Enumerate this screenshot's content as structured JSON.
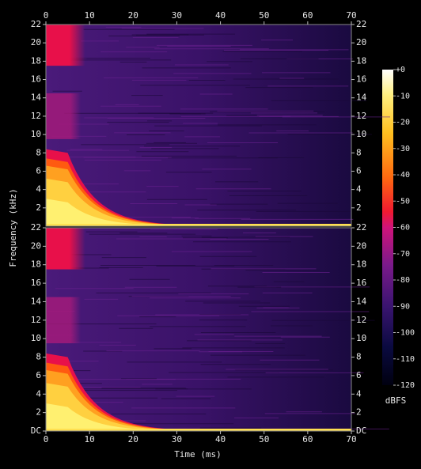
{
  "chart_data": {
    "type": "spectrogram",
    "xlabel": "Time (ms)",
    "ylabel": "Frequency (kHz)",
    "xlim": [
      0,
      70
    ],
    "xticks": [
      0,
      10,
      20,
      30,
      40,
      50,
      60,
      70
    ],
    "panels": [
      {
        "ylim": [
          0,
          22
        ],
        "yticks": [
          2,
          4,
          6,
          8,
          10,
          12,
          14,
          16,
          18,
          20,
          22
        ]
      },
      {
        "ylim": [
          0,
          22
        ],
        "yticks": [
          {
            "value": 0,
            "label": "DC"
          },
          2,
          4,
          6,
          8,
          10,
          12,
          14,
          16,
          18,
          20,
          22
        ]
      }
    ],
    "colorbar": {
      "label": "dBFS",
      "lim": [
        -120,
        0
      ],
      "ticks": [
        {
          "value": 0,
          "label": "+0"
        },
        -10,
        -20,
        -30,
        -40,
        -50,
        -60,
        -70,
        -80,
        -90,
        -100,
        -110,
        -120
      ]
    }
  }
}
